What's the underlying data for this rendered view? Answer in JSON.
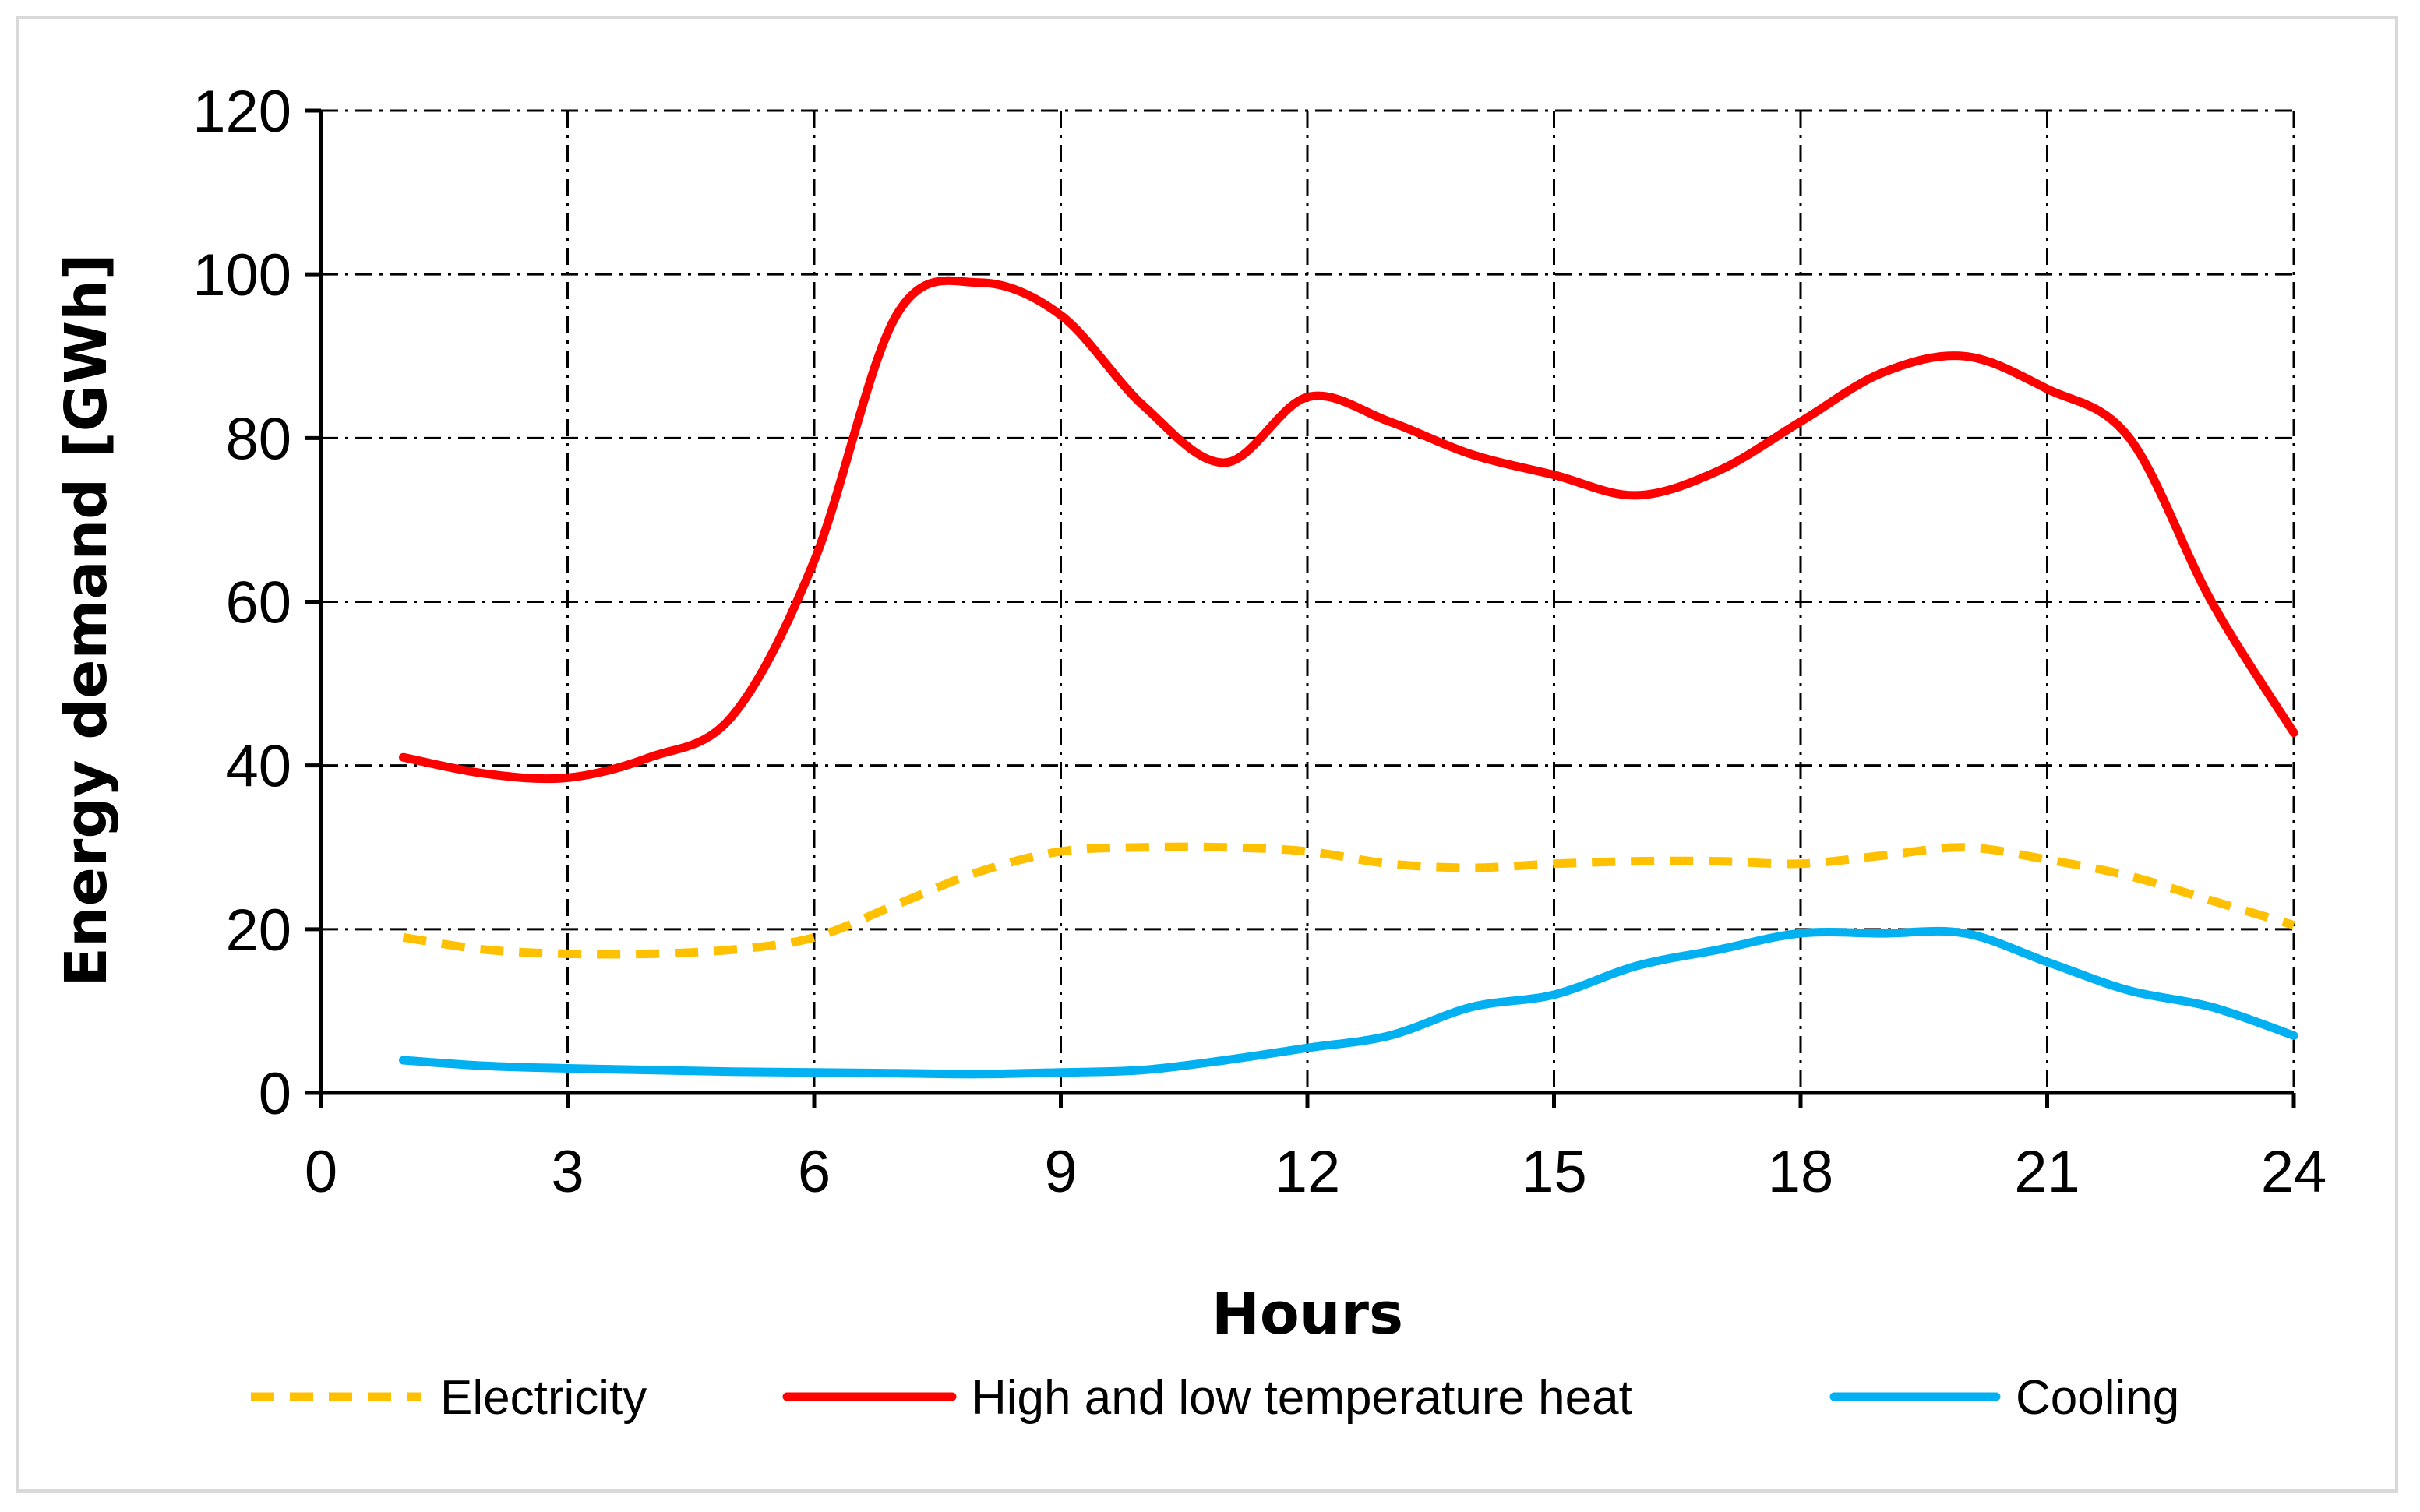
{
  "chart_data": {
    "type": "line",
    "xlabel": "Hours",
    "ylabel": "Energy demand [GWh]",
    "xlim": [
      0,
      24
    ],
    "ylim": [
      0,
      120
    ],
    "xticks": [
      0,
      3,
      6,
      9,
      12,
      15,
      18,
      21,
      24
    ],
    "yticks": [
      0,
      20,
      40,
      60,
      80,
      100,
      120
    ],
    "grid": "on (dash-dot)",
    "legend_position": "bottom",
    "x": [
      1,
      2,
      3,
      4,
      5,
      6,
      7,
      8,
      9,
      10,
      11,
      12,
      13,
      14,
      15,
      16,
      17,
      18,
      19,
      20,
      21,
      22,
      23,
      24
    ],
    "series": [
      {
        "name": "Electricity",
        "color": "#FFC000",
        "style": "dashed",
        "values": [
          19,
          17.5,
          17,
          17,
          17.5,
          19,
          23,
          27,
          29.5,
          30,
          30,
          29.5,
          28,
          27.5,
          28,
          28.3,
          28.3,
          28,
          29,
          30,
          28.5,
          26.5,
          23.5,
          20.5
        ]
      },
      {
        "name": "High and low temperature heat",
        "color": "#FF0000",
        "style": "solid",
        "values": [
          41,
          39,
          38.5,
          41,
          46,
          65,
          95,
          99,
          95,
          84,
          77,
          85,
          82,
          78,
          75.5,
          73,
          76,
          82,
          88,
          90,
          86,
          80,
          60,
          44
        ]
      },
      {
        "name": "Cooling",
        "color": "#00B0F0",
        "style": "solid",
        "values": [
          4,
          3.3,
          3,
          2.8,
          2.6,
          2.5,
          2.4,
          2.3,
          2.5,
          2.8,
          4,
          5.5,
          7,
          10.5,
          12,
          15.5,
          17.5,
          19.5,
          19.5,
          19.5,
          16,
          12.5,
          10.5,
          7
        ]
      }
    ]
  }
}
